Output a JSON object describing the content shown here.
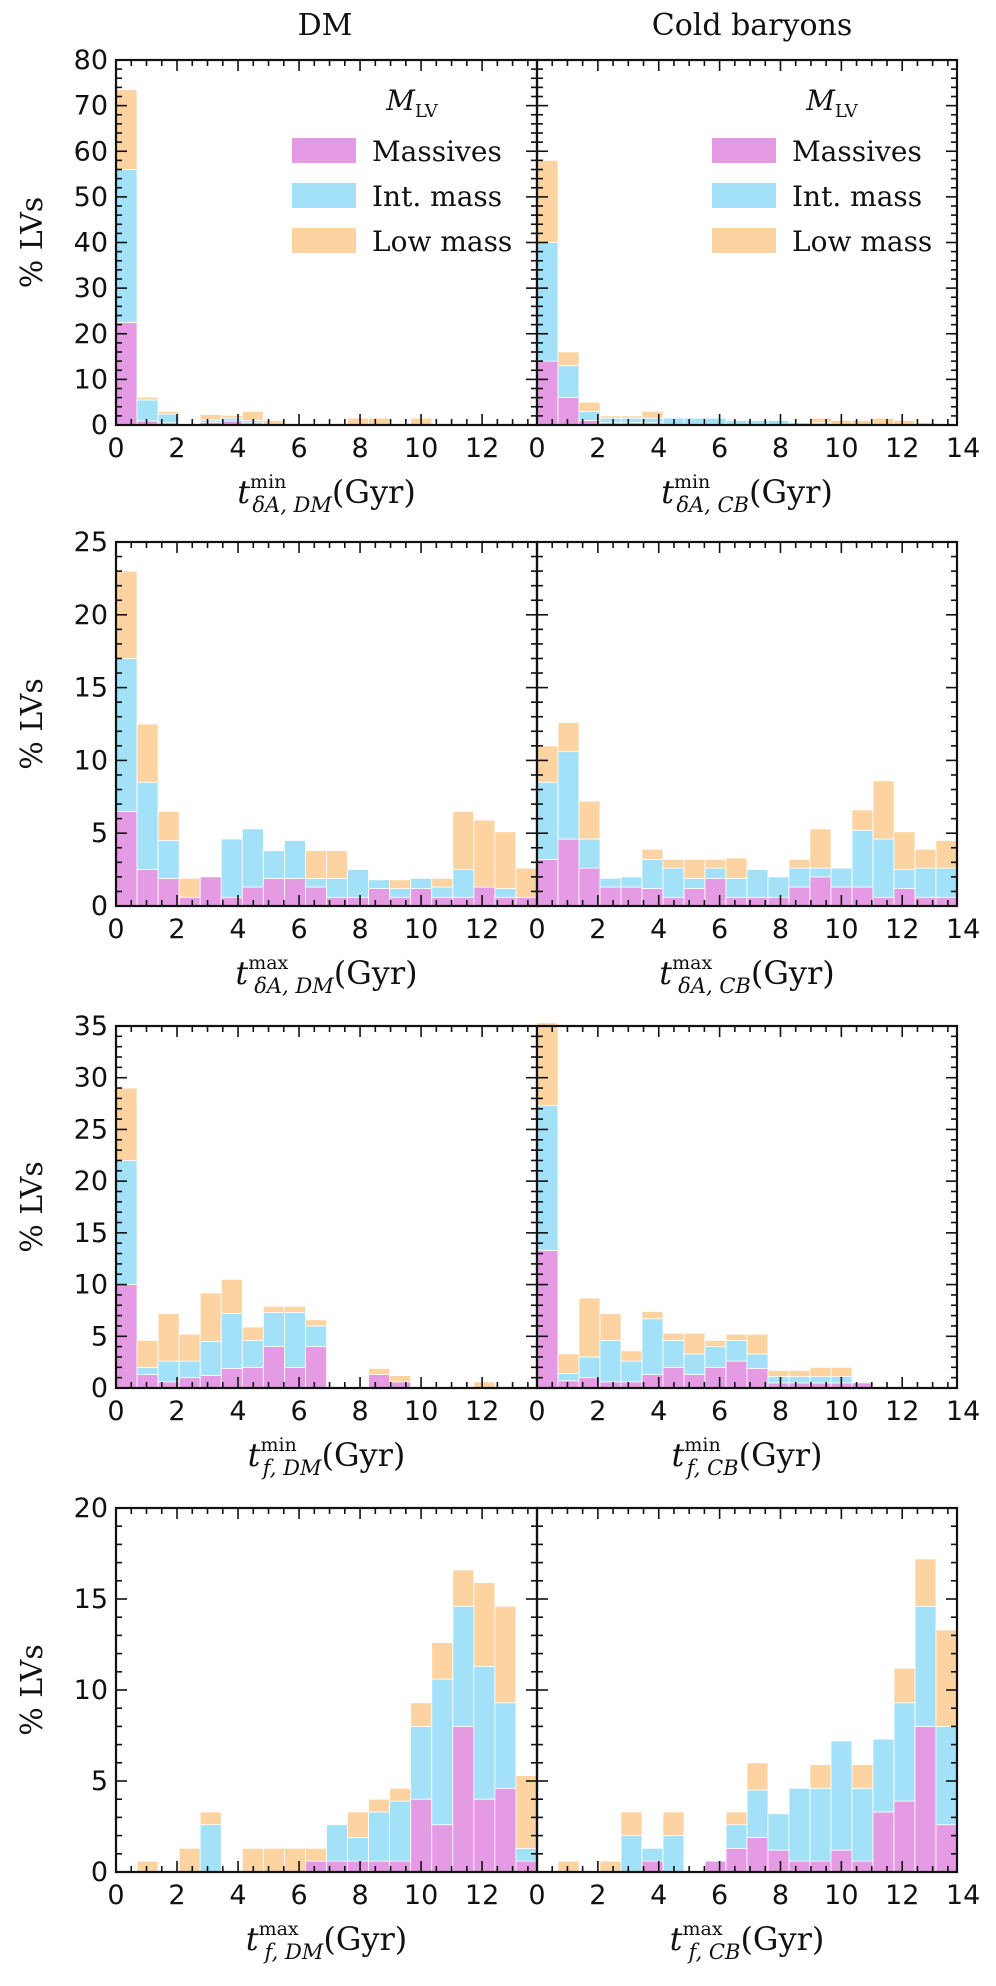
{
  "figure": {
    "column_titles": [
      "DM",
      "Cold baryons"
    ],
    "legend": {
      "title_main": "M",
      "title_sub": "LV",
      "entries": [
        {
          "label": "Massives",
          "color": "#e49be3"
        },
        {
          "label": "Int. mass",
          "color": "#a3e1f8"
        },
        {
          "label": "Low mass",
          "color": "#fcd3a1"
        }
      ]
    }
  },
  "chart_data": [
    {
      "type": "bar",
      "stacked": true,
      "title": "DM",
      "ylabel": "% LVs",
      "ylim": [
        0,
        80
      ],
      "yticks": [
        0,
        10,
        20,
        30,
        40,
        50,
        60,
        70,
        80
      ],
      "xlim": [
        0,
        13.8
      ],
      "xticks": [
        0,
        2,
        4,
        6,
        8,
        10,
        12
      ],
      "xlabel": {
        "sym": "t",
        "sup": "min",
        "sub": "δA, DM",
        "unit": "(Gyr)"
      },
      "bin_width": 0.69,
      "series": [
        {
          "name": "Massives",
          "values": [
            22.5,
            0.9,
            0.5,
            0,
            0.6,
            0.9,
            0.5,
            0,
            0,
            0,
            0,
            0,
            0,
            0,
            0,
            0,
            0,
            0,
            0,
            0
          ]
        },
        {
          "name": "Int. mass",
          "values": [
            33.5,
            4.6,
            1.9,
            0,
            0.5,
            0.6,
            0.5,
            0,
            0,
            0,
            0,
            0,
            0,
            0,
            0,
            0,
            0,
            0,
            0,
            0
          ]
        },
        {
          "name": "Low mass",
          "values": [
            17.5,
            0.6,
            0.6,
            0,
            1.2,
            0.6,
            2,
            1,
            0,
            0,
            0,
            1.5,
            1.5,
            0,
            1.5,
            0,
            0,
            0,
            0,
            0
          ]
        }
      ]
    },
    {
      "type": "bar",
      "stacked": true,
      "title": "Cold baryons",
      "ylabel": "",
      "ylim": [
        0,
        80
      ],
      "yticks": [
        0,
        10,
        20,
        30,
        40,
        50,
        60,
        70,
        80
      ],
      "xlim": [
        0,
        13.8
      ],
      "xticks": [
        0,
        2,
        4,
        6,
        8,
        10,
        12,
        14
      ],
      "xlabel": {
        "sym": "t",
        "sup": "min",
        "sub": "δA, CB",
        "unit": "(Gyr)"
      },
      "bin_width": 0.69,
      "series": [
        {
          "name": "Massives",
          "values": [
            14,
            6,
            1,
            0.5,
            0.5,
            0.5,
            0,
            0,
            0,
            0,
            0,
            0,
            0,
            0,
            0,
            0,
            0,
            0,
            0,
            0
          ]
        },
        {
          "name": "Int. mass",
          "values": [
            26,
            7,
            2,
            1,
            1,
            1,
            1.5,
            1.5,
            1.5,
            1,
            1,
            1,
            0.5,
            0.5,
            0,
            0,
            0,
            0,
            0,
            0
          ]
        },
        {
          "name": "Low mass",
          "values": [
            18,
            3,
            2,
            0.5,
            0.5,
            1.5,
            0,
            0,
            0,
            0,
            0,
            0,
            0,
            1,
            1,
            1,
            1.5,
            1,
            0.5,
            0
          ]
        }
      ]
    },
    {
      "type": "bar",
      "stacked": true,
      "title": "",
      "ylabel": "% LVs",
      "ylim": [
        0,
        25
      ],
      "yticks": [
        0,
        5,
        10,
        15,
        20,
        25
      ],
      "xlim": [
        0,
        13.8
      ],
      "xticks": [
        0,
        2,
        4,
        6,
        8,
        10,
        12
      ],
      "xlabel": {
        "sym": "t",
        "sup": "max",
        "sub": "δA, DM",
        "unit": "(Gyr)"
      },
      "bin_width": 0.69,
      "series": [
        {
          "name": "Massives",
          "values": [
            6.5,
            2.5,
            1.9,
            0.6,
            2,
            0.6,
            1.3,
            1.9,
            1.9,
            1.3,
            0.6,
            0.6,
            1.2,
            0.6,
            1.2,
            0.6,
            0.6,
            1.3,
            0.6,
            0.6
          ]
        },
        {
          "name": "Int. mass",
          "values": [
            10.5,
            6,
            2.6,
            0,
            0,
            4,
            4,
            1.9,
            2.6,
            0.6,
            1.3,
            1.9,
            0.6,
            0.6,
            0.7,
            0.7,
            1.9,
            0,
            0.6,
            0
          ]
        },
        {
          "name": "Low mass",
          "values": [
            6,
            4,
            2,
            1.3,
            0,
            0,
            0,
            0,
            0,
            1.9,
            1.9,
            0,
            0,
            0.6,
            0,
            0.6,
            4,
            4.6,
            3.9,
            2
          ]
        }
      ]
    },
    {
      "type": "bar",
      "stacked": true,
      "title": "",
      "ylabel": "",
      "ylim": [
        0,
        25
      ],
      "yticks": [
        0,
        5,
        10,
        15,
        20,
        25
      ],
      "xlim": [
        0,
        13.8
      ],
      "xticks": [
        0,
        2,
        4,
        6,
        8,
        10,
        12,
        14
      ],
      "xlabel": {
        "sym": "t",
        "sup": "max",
        "sub": "δA, CB",
        "unit": "(Gyr)"
      },
      "bin_width": 0.69,
      "series": [
        {
          "name": "Massives",
          "values": [
            3.2,
            4.6,
            2.6,
            1.3,
            1.3,
            1.2,
            0.6,
            1.2,
            1.9,
            0.6,
            0.6,
            0.6,
            1.3,
            2,
            1.3,
            1.3,
            0.6,
            1.2,
            0.6,
            0.6
          ]
        },
        {
          "name": "Int. mass",
          "values": [
            5.3,
            6,
            2,
            0.6,
            0.7,
            2,
            2,
            0.7,
            0.7,
            1.3,
            1.9,
            1.4,
            1.3,
            0.6,
            1.3,
            3.9,
            4,
            1.3,
            2,
            2
          ]
        },
        {
          "name": "Low mass",
          "values": [
            2.5,
            2,
            2.6,
            0,
            0,
            0.7,
            0.6,
            1.3,
            0.6,
            1.4,
            0,
            0,
            0.6,
            2.7,
            0,
            1.4,
            4,
            2.6,
            1.3,
            1.9
          ]
        }
      ]
    },
    {
      "type": "bar",
      "stacked": true,
      "title": "",
      "ylabel": "% LVs",
      "ylim": [
        0,
        35
      ],
      "yticks": [
        0,
        5,
        10,
        15,
        20,
        25,
        30,
        35
      ],
      "xlim": [
        0,
        13.8
      ],
      "xticks": [
        0,
        2,
        4,
        6,
        8,
        10,
        12
      ],
      "xlabel": {
        "sym": "t",
        "sup": "min",
        "sub": "f, DM",
        "unit": "(Gyr)"
      },
      "bin_width": 0.69,
      "series": [
        {
          "name": "Massives",
          "values": [
            10,
            1.3,
            0.6,
            1,
            1.2,
            1.9,
            2,
            4,
            2,
            4,
            0,
            0,
            1.3,
            0.6,
            0,
            0,
            0,
            0,
            0,
            0
          ]
        },
        {
          "name": "Int. mass",
          "values": [
            12,
            0.7,
            2,
            1.6,
            3.3,
            5.3,
            2.6,
            3.3,
            5.3,
            2,
            0,
            0,
            0,
            0,
            0,
            0,
            0,
            0,
            0,
            0
          ]
        },
        {
          "name": "Low mass",
          "values": [
            7,
            2.6,
            4.6,
            2.6,
            4.7,
            3.3,
            1.3,
            0.6,
            0.6,
            0.6,
            0,
            0,
            0.6,
            0.6,
            0,
            0,
            0,
            0.6,
            0,
            0
          ]
        }
      ]
    },
    {
      "type": "bar",
      "stacked": true,
      "title": "",
      "ylabel": "",
      "ylim": [
        0,
        35
      ],
      "yticks": [
        0,
        5,
        10,
        15,
        20,
        25,
        30,
        35
      ],
      "xlim": [
        0,
        13.8
      ],
      "xticks": [
        0,
        2,
        4,
        6,
        8,
        10,
        12,
        14
      ],
      "xlabel": {
        "sym": "t",
        "sup": "min",
        "sub": "f, CB",
        "unit": "(Gyr)"
      },
      "bin_width": 0.69,
      "series": [
        {
          "name": "Massives",
          "values": [
            13.3,
            0.7,
            1,
            0.6,
            0.6,
            1.3,
            2,
            1.3,
            2,
            2.6,
            1.9,
            0.5,
            0.5,
            0.5,
            0.5,
            0.5,
            0,
            0,
            0,
            0
          ]
        },
        {
          "name": "Int. mass",
          "values": [
            14,
            0.7,
            2,
            4,
            2,
            5.4,
            2.6,
            2,
            2,
            2,
            1.4,
            0.6,
            0.6,
            0.6,
            0.6,
            0,
            0,
            0,
            0,
            0
          ]
        },
        {
          "name": "Low mass",
          "values": [
            8,
            1.9,
            5.7,
            2.6,
            1,
            0.7,
            0.7,
            2,
            0.6,
            0.6,
            1.9,
            0.6,
            0.6,
            0.9,
            0.9,
            0,
            0,
            0,
            0,
            0
          ]
        }
      ]
    },
    {
      "type": "bar",
      "stacked": true,
      "title": "",
      "ylabel": "% LVs",
      "ylim": [
        0,
        20
      ],
      "yticks": [
        0,
        5,
        10,
        15,
        20
      ],
      "xlim": [
        0,
        13.8
      ],
      "xticks": [
        0,
        2,
        4,
        6,
        8,
        10,
        12
      ],
      "xlabel": {
        "sym": "t",
        "sup": "max",
        "sub": "f, DM",
        "unit": "(Gyr)"
      },
      "bin_width": 0.69,
      "series": [
        {
          "name": "Massives",
          "values": [
            0,
            0,
            0,
            0,
            0,
            0,
            0,
            0,
            0,
            0.6,
            0.6,
            0.6,
            0.6,
            0.6,
            4,
            2.6,
            8,
            4,
            4.6,
            0.6
          ]
        },
        {
          "name": "Int. mass",
          "values": [
            0,
            0,
            0,
            0,
            2.6,
            0,
            0,
            0,
            0,
            0,
            2,
            1.3,
            2.7,
            3.3,
            4,
            8,
            6.6,
            7.3,
            4.7,
            0.7
          ]
        },
        {
          "name": "Low mass",
          "values": [
            0,
            0.6,
            0,
            1.3,
            0.7,
            0,
            1.3,
            1.3,
            1.3,
            0.7,
            0,
            1.4,
            0.7,
            0.7,
            1.3,
            2,
            2,
            4.6,
            5.3,
            4
          ]
        }
      ]
    },
    {
      "type": "bar",
      "stacked": true,
      "title": "",
      "ylabel": "",
      "ylim": [
        0,
        20
      ],
      "yticks": [
        0,
        5,
        10,
        15,
        20
      ],
      "xlim": [
        0,
        13.8
      ],
      "xticks": [
        0,
        2,
        4,
        6,
        8,
        10,
        12,
        14
      ],
      "xlabel": {
        "sym": "t",
        "sup": "max",
        "sub": "f, CB",
        "unit": "(Gyr)"
      },
      "bin_width": 0.69,
      "series": [
        {
          "name": "Massives",
          "values": [
            0,
            0,
            0,
            0,
            0,
            0.6,
            0,
            0,
            0.6,
            1.3,
            1.9,
            1.2,
            0.6,
            0.6,
            1.2,
            0.6,
            3.3,
            3.9,
            8,
            2.6
          ]
        },
        {
          "name": "Int. mass",
          "values": [
            0,
            0,
            0,
            0,
            2,
            0.7,
            2,
            0,
            0,
            1.3,
            2.6,
            2,
            4,
            4,
            6,
            4,
            4,
            5.4,
            6.6,
            5.4
          ]
        },
        {
          "name": "Low mass",
          "values": [
            0,
            0.6,
            0,
            0.6,
            1.3,
            0,
            1.3,
            0,
            0,
            0.7,
            1.5,
            0,
            0,
            1.3,
            0,
            1.3,
            0,
            1.9,
            2.6,
            5.3
          ]
        }
      ]
    }
  ]
}
